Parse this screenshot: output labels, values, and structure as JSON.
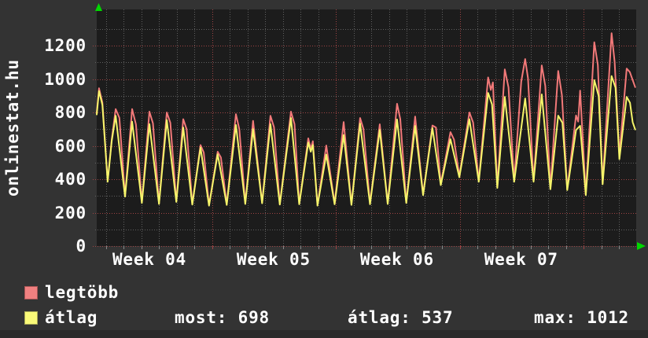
{
  "watermark": "onlinestat.hu",
  "legend": {
    "series1": {
      "label": "legtöbb",
      "color": "#f08080"
    },
    "series2": {
      "label": "átlag",
      "color": "#fafa78"
    }
  },
  "stats": [
    {
      "label": "most:",
      "value": "698",
      "text": "most: 698"
    },
    {
      "label": "átlag:",
      "value": "537",
      "text": "átlag: 537"
    },
    {
      "label": "max:",
      "value": "1012",
      "text": "max: 1012"
    }
  ],
  "colors": {
    "background": "#333333",
    "plot_background": "#1c1c1c",
    "text": "#ffffff",
    "grid_minor": "#606060",
    "grid_major": "#a04444",
    "arrow": "#00d800",
    "series_max": "#f27979",
    "series_avg": "#f5f56a"
  },
  "chart_data": {
    "type": "line",
    "title": "",
    "watermark": "onlinestat.hu",
    "grid": "dotted, minor every 100 and every day, major red every 200 and every week",
    "legend_position": "bottom-left",
    "x_axis": {
      "unit": "days",
      "range_days": [
        0,
        30.5
      ],
      "day_gridline_offset": 0.53,
      "week_gridlines_days": [
        6.53,
        13.56,
        20.53,
        27.56
      ],
      "labels": [
        {
          "label": "Week 04",
          "day": 2.98
        },
        {
          "label": "Week 05",
          "day": 10.0
        },
        {
          "label": "Week 06",
          "day": 16.98
        },
        {
          "label": "Week 07",
          "day": 24.0
        }
      ]
    },
    "y_axis": {
      "ticks": [
        0,
        200,
        400,
        600,
        800,
        1000,
        1200
      ],
      "minor_step": 100,
      "range": [
        0,
        1417
      ]
    },
    "summary": {
      "most": 698,
      "atlag": 537,
      "max": 1012
    },
    "series": [
      {
        "name": "legtöbb",
        "color": "#f27979",
        "points": [
          [
            0.0,
            800
          ],
          [
            0.13,
            945
          ],
          [
            0.32,
            860
          ],
          [
            0.62,
            390
          ],
          [
            0.85,
            640
          ],
          [
            1.07,
            820
          ],
          [
            1.28,
            768
          ],
          [
            1.6,
            300
          ],
          [
            2.0,
            820
          ],
          [
            2.22,
            728
          ],
          [
            2.55,
            262
          ],
          [
            2.98,
            805
          ],
          [
            3.18,
            735
          ],
          [
            3.52,
            255
          ],
          [
            3.96,
            800
          ],
          [
            4.16,
            738
          ],
          [
            4.5,
            268
          ],
          [
            4.89,
            760
          ],
          [
            5.08,
            700
          ],
          [
            5.4,
            250
          ],
          [
            5.87,
            605
          ],
          [
            6.05,
            560
          ],
          [
            6.35,
            245
          ],
          [
            6.84,
            565
          ],
          [
            7.02,
            530
          ],
          [
            7.35,
            250
          ],
          [
            7.87,
            790
          ],
          [
            8.06,
            700
          ],
          [
            8.4,
            255
          ],
          [
            8.84,
            750
          ],
          [
            9.35,
            260
          ],
          [
            9.82,
            780
          ],
          [
            10.02,
            712
          ],
          [
            10.35,
            250
          ],
          [
            10.98,
            805
          ],
          [
            11.18,
            730
          ],
          [
            11.45,
            252
          ],
          [
            11.96,
            645
          ],
          [
            12.1,
            580
          ],
          [
            12.22,
            628
          ],
          [
            12.48,
            245
          ],
          [
            12.98,
            602
          ],
          [
            13.45,
            255
          ],
          [
            13.96,
            743
          ],
          [
            14.4,
            250
          ],
          [
            14.89,
            767
          ],
          [
            15.08,
            700
          ],
          [
            15.45,
            255
          ],
          [
            16.0,
            729
          ],
          [
            16.45,
            255
          ],
          [
            16.98,
            852
          ],
          [
            17.16,
            760
          ],
          [
            17.5,
            260
          ],
          [
            18.0,
            776
          ],
          [
            18.45,
            310
          ],
          [
            18.98,
            722
          ],
          [
            19.18,
            710
          ],
          [
            19.45,
            372
          ],
          [
            20.0,
            682
          ],
          [
            20.2,
            638
          ],
          [
            20.5,
            420
          ],
          [
            21.07,
            800
          ],
          [
            21.28,
            740
          ],
          [
            21.6,
            390
          ],
          [
            22.13,
            1010
          ],
          [
            22.28,
            935
          ],
          [
            22.4,
            980
          ],
          [
            22.65,
            352
          ],
          [
            23.07,
            1058
          ],
          [
            23.28,
            950
          ],
          [
            23.6,
            390
          ],
          [
            24.0,
            985
          ],
          [
            24.22,
            1120
          ],
          [
            24.38,
            1005
          ],
          [
            24.7,
            390
          ],
          [
            25.16,
            1082
          ],
          [
            25.36,
            958
          ],
          [
            25.65,
            345
          ],
          [
            26.09,
            1049
          ],
          [
            26.3,
            905
          ],
          [
            26.6,
            340
          ],
          [
            27.1,
            782
          ],
          [
            27.22,
            745
          ],
          [
            27.33,
            931
          ],
          [
            27.65,
            310
          ],
          [
            28.13,
            1220
          ],
          [
            28.33,
            1085
          ],
          [
            28.6,
            376
          ],
          [
            29.11,
            1275
          ],
          [
            29.28,
            1102
          ],
          [
            29.55,
            545
          ],
          [
            29.96,
            1063
          ],
          [
            30.14,
            1042
          ],
          [
            30.44,
            952
          ]
        ]
      },
      {
        "name": "átlag",
        "color": "#f5f56a",
        "points": [
          [
            0.0,
            788
          ],
          [
            0.13,
            928
          ],
          [
            0.32,
            845
          ],
          [
            0.62,
            385
          ],
          [
            0.85,
            630
          ],
          [
            1.07,
            780
          ],
          [
            1.6,
            296
          ],
          [
            2.0,
            745
          ],
          [
            2.55,
            258
          ],
          [
            2.98,
            730
          ],
          [
            3.52,
            252
          ],
          [
            3.96,
            755
          ],
          [
            4.5,
            264
          ],
          [
            4.89,
            710
          ],
          [
            5.4,
            248
          ],
          [
            5.87,
            590
          ],
          [
            6.35,
            242
          ],
          [
            6.84,
            550
          ],
          [
            7.35,
            246
          ],
          [
            7.87,
            725
          ],
          [
            8.4,
            252
          ],
          [
            8.84,
            700
          ],
          [
            9.35,
            256
          ],
          [
            9.82,
            730
          ],
          [
            10.35,
            248
          ],
          [
            10.98,
            767
          ],
          [
            11.45,
            250
          ],
          [
            11.96,
            620
          ],
          [
            12.1,
            565
          ],
          [
            12.22,
            605
          ],
          [
            12.48,
            242
          ],
          [
            12.98,
            548
          ],
          [
            13.45,
            250
          ],
          [
            13.96,
            665
          ],
          [
            14.4,
            246
          ],
          [
            14.89,
            734
          ],
          [
            15.45,
            250
          ],
          [
            16.0,
            696
          ],
          [
            16.45,
            252
          ],
          [
            16.98,
            758
          ],
          [
            17.5,
            258
          ],
          [
            18.0,
            720
          ],
          [
            18.45,
            305
          ],
          [
            18.98,
            706
          ],
          [
            19.45,
            365
          ],
          [
            20.0,
            640
          ],
          [
            20.5,
            412
          ],
          [
            21.07,
            760
          ],
          [
            21.6,
            385
          ],
          [
            22.13,
            917
          ],
          [
            22.35,
            848
          ],
          [
            22.65,
            348
          ],
          [
            23.07,
            893
          ],
          [
            23.6,
            385
          ],
          [
            24.22,
            884
          ],
          [
            24.7,
            385
          ],
          [
            25.16,
            908
          ],
          [
            25.65,
            340
          ],
          [
            26.09,
            781
          ],
          [
            26.33,
            738
          ],
          [
            26.6,
            335
          ],
          [
            27.1,
            695
          ],
          [
            27.33,
            720
          ],
          [
            27.65,
            305
          ],
          [
            28.13,
            994
          ],
          [
            28.38,
            898
          ],
          [
            28.6,
            370
          ],
          [
            29.11,
            1018
          ],
          [
            29.33,
            948
          ],
          [
            29.55,
            520
          ],
          [
            29.96,
            893
          ],
          [
            30.15,
            858
          ],
          [
            30.3,
            742
          ],
          [
            30.44,
            698
          ]
        ]
      }
    ]
  }
}
